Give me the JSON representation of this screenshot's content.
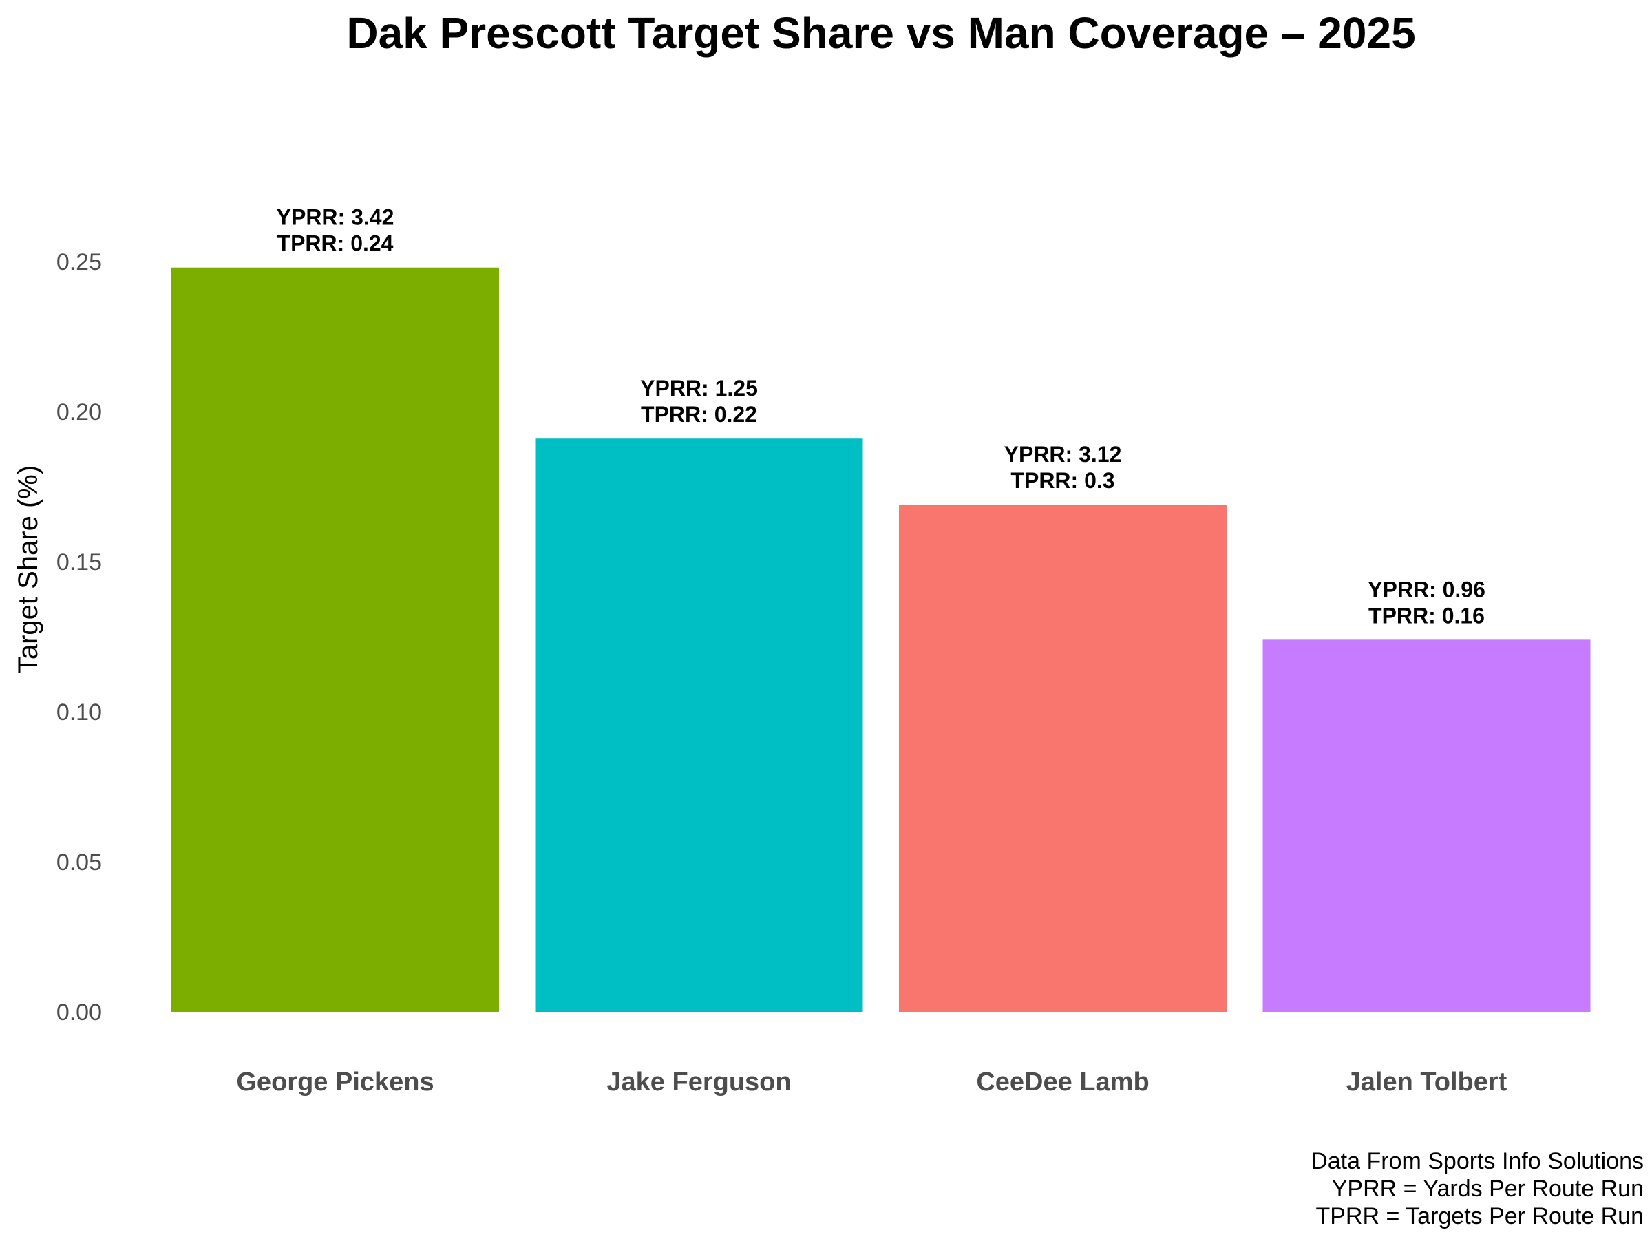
{
  "chart_data": {
    "type": "bar",
    "title": "Dak Prescott Target Share vs Man Coverage – 2025",
    "xlabel": "",
    "ylabel": "Target Share (%)",
    "ylim": [
      0,
      0.25
    ],
    "yticks": [
      "0.00",
      "0.05",
      "0.10",
      "0.15",
      "0.20",
      "0.25"
    ],
    "categories": [
      "George Pickens",
      "Jake Ferguson",
      "CeeDee Lamb",
      "Jalen Tolbert"
    ],
    "values": [
      0.248,
      0.191,
      0.169,
      0.124
    ],
    "colors": [
      "#7CAE00",
      "#00BFC4",
      "#F8766D",
      "#C77CFF"
    ],
    "bar_labels": [
      [
        "YPRR: 3.42",
        "TPRR: 0.24"
      ],
      [
        "YPRR: 1.25",
        "TPRR: 0.22"
      ],
      [
        "YPRR: 3.12",
        "TPRR: 0.3"
      ],
      [
        "YPRR: 0.96",
        "TPRR: 0.16"
      ]
    ],
    "grid": false,
    "legend": "none",
    "caption": [
      "Data From Sports Info Solutions",
      "YPRR = Yards Per Route Run",
      "TPRR = Targets Per Route Run"
    ]
  }
}
